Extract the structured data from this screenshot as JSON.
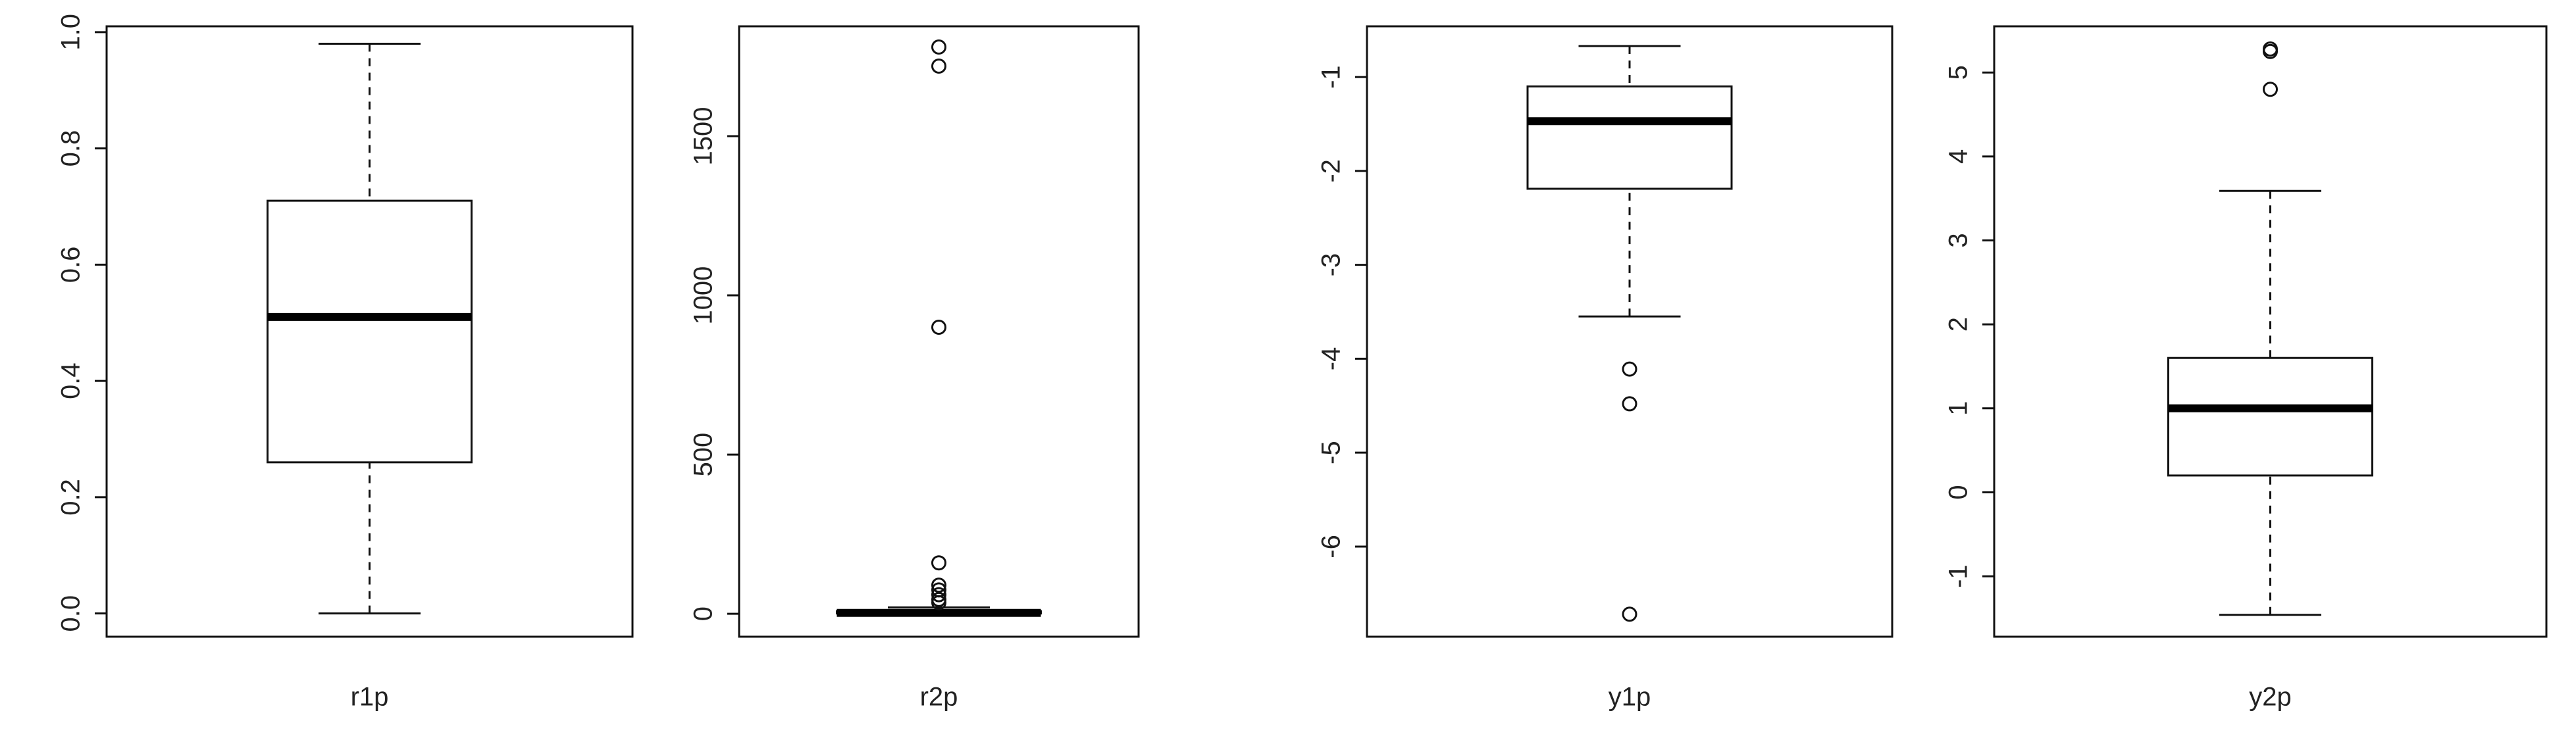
{
  "chart_data": [
    {
      "type": "box",
      "xlabel": "r1p",
      "ylim": [
        -0.04,
        1.01
      ],
      "yticks": [
        {
          "value": 0,
          "label": "0.0"
        },
        {
          "value": 0.2,
          "label": "0.2"
        },
        {
          "value": 0.4,
          "label": "0.4"
        },
        {
          "value": 0.6,
          "label": "0.6"
        },
        {
          "value": 0.8,
          "label": "0.8"
        },
        {
          "value": 1,
          "label": "1.0"
        }
      ],
      "min": 0.0,
      "q1": 0.26,
      "median": 0.51,
      "q3": 0.71,
      "max": 0.98,
      "outliers": []
    },
    {
      "type": "box",
      "xlabel": "r2p",
      "ylim": [
        -72,
        1845
      ],
      "yticks": [
        0,
        500,
        1000,
        1500
      ],
      "min": 0,
      "q1": 1,
      "median": 3,
      "q3": 8,
      "max": 20,
      "outliers": [
        1780,
        1720,
        900,
        160,
        90,
        75,
        60,
        45,
        35
      ]
    },
    {
      "type": "box",
      "xlabel": "y1p",
      "ylim": [
        -6.96,
        -0.46
      ],
      "yticks": [
        -6,
        -5,
        -4,
        -3,
        -2,
        -1
      ],
      "min": -3.55,
      "q1": -2.19,
      "median": -1.47,
      "q3": -1.1,
      "max": -0.67,
      "outliers": [
        -4.11,
        -4.48,
        -6.72
      ]
    },
    {
      "type": "box",
      "xlabel": "y2p",
      "ylim": [
        -1.72,
        5.55
      ],
      "yticks": [
        -1,
        0,
        1,
        2,
        3,
        4,
        5
      ],
      "min": -1.46,
      "q1": 0.2,
      "median": 1.0,
      "q3": 1.6,
      "max": 3.59,
      "outliers": [
        5.28,
        5.25,
        4.8
      ]
    }
  ]
}
